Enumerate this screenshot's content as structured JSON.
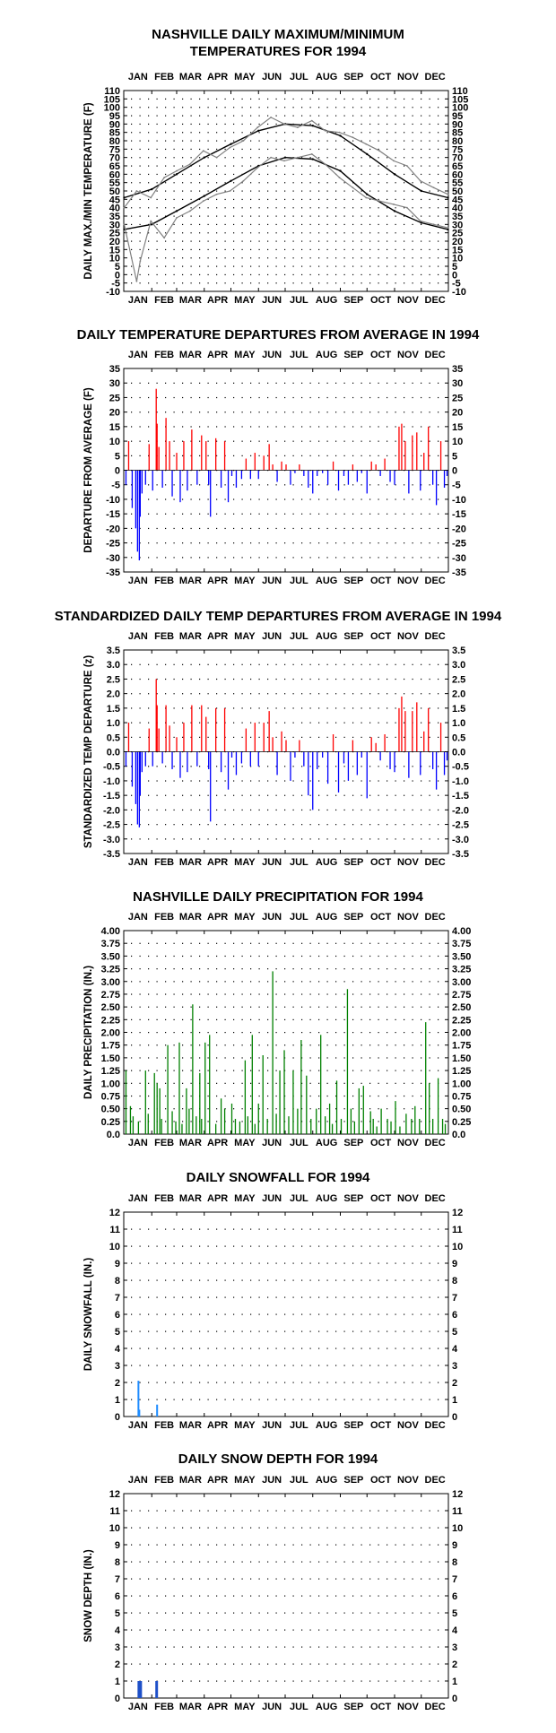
{
  "chart_data": [
    {
      "id": "temp",
      "type": "line",
      "title_lines": [
        "NASHVILLE DAILY MAXIMUM/MINIMUM",
        "TEMPERATURES FOR 1994"
      ],
      "ylabel": "DAILY MAX./MIN TEMPERATURE (F)",
      "ylim": [
        -10,
        110
      ],
      "yticks": [
        "-10",
        "-5",
        "0",
        "5",
        "10",
        "15",
        "20",
        "25",
        "30",
        "35",
        "40",
        "45",
        "50",
        "55",
        "60",
        "65",
        "70",
        "75",
        "80",
        "85",
        "90",
        "95",
        "100",
        "105",
        "110"
      ],
      "months": [
        "JAN",
        "FEB",
        "MAR",
        "APR",
        "MAY",
        "JUN",
        "JUL",
        "AUG",
        "SEP",
        "OCT",
        "NOV",
        "DEC"
      ],
      "grid": true,
      "colors": {
        "observed": "#808080",
        "normal": "#000000"
      },
      "series": [
        {
          "role": "normal_max",
          "x": [
            1,
            32,
            60,
            91,
            121,
            152,
            182,
            213,
            244,
            274,
            305,
            335,
            365
          ],
          "values": [
            46,
            51,
            60,
            70,
            78,
            86,
            90,
            89,
            83,
            72,
            60,
            50,
            46
          ]
        },
        {
          "role": "normal_min",
          "x": [
            1,
            32,
            60,
            91,
            121,
            152,
            182,
            213,
            244,
            274,
            305,
            335,
            365
          ],
          "values": [
            27,
            30,
            38,
            47,
            56,
            65,
            70,
            69,
            62,
            48,
            38,
            31,
            27
          ]
        },
        {
          "role": "observed_max",
          "x": [
            1,
            15,
            31,
            46,
            60,
            75,
            90,
            105,
            120,
            135,
            151,
            166,
            181,
            196,
            212,
            227,
            243,
            258,
            273,
            288,
            304,
            319,
            334,
            349,
            365
          ],
          "values": [
            40,
            50,
            46,
            58,
            62,
            66,
            74,
            70,
            76,
            80,
            88,
            94,
            90,
            88,
            92,
            86,
            85,
            82,
            78,
            74,
            68,
            65,
            56,
            52,
            48
          ]
        },
        {
          "role": "observed_min",
          "x": [
            1,
            15,
            19,
            31,
            46,
            60,
            75,
            90,
            105,
            120,
            135,
            151,
            166,
            181,
            196,
            212,
            227,
            243,
            258,
            273,
            288,
            304,
            319,
            334,
            349,
            365
          ],
          "values": [
            30,
            -4,
            8,
            32,
            22,
            34,
            38,
            44,
            48,
            50,
            56,
            64,
            70,
            68,
            70,
            72,
            66,
            58,
            52,
            46,
            44,
            42,
            40,
            32,
            30,
            28
          ]
        }
      ]
    },
    {
      "id": "dep",
      "type": "bar",
      "title_lines": [
        "DAILY TEMPERATURE DEPARTURES FROM AVERAGE IN 1994"
      ],
      "ylabel": "DEPARTURE FROM AVERAGE (F)",
      "ylim": [
        -35,
        35
      ],
      "yticks": [
        "-35",
        "-30",
        "-25",
        "-20",
        "-15",
        "-10",
        "-5",
        "0",
        "5",
        "10",
        "15",
        "20",
        "25",
        "30",
        "35"
      ],
      "months": [
        "JAN",
        "FEB",
        "MAR",
        "APR",
        "MAY",
        "JUN",
        "JUL",
        "AUG",
        "SEP",
        "OCT",
        "NOV",
        "DEC"
      ],
      "grid": true,
      "colors": {
        "positive": "#ff0000",
        "negative": "#0000ff"
      },
      "x": [
        3,
        6,
        10,
        14,
        16,
        18,
        19,
        21,
        25,
        29,
        33,
        37,
        38,
        40,
        44,
        48,
        52,
        55,
        60,
        64,
        68,
        72,
        77,
        83,
        88,
        93,
        96,
        98,
        104,
        110,
        114,
        118,
        122,
        127,
        133,
        138,
        143,
        148,
        152,
        158,
        164,
        168,
        173,
        178,
        183,
        188,
        193,
        198,
        203,
        208,
        213,
        218,
        224,
        230,
        236,
        242,
        248,
        253,
        258,
        263,
        268,
        274,
        279,
        284,
        289,
        294,
        300,
        305,
        310,
        313,
        317,
        321,
        325,
        330,
        334,
        338,
        343,
        348,
        352,
        357,
        361,
        364
      ],
      "values": [
        -5,
        10,
        -13,
        -20,
        -28,
        -31,
        -16,
        -8,
        -5,
        9,
        -7,
        28,
        16,
        8,
        -6,
        18,
        10,
        -9,
        6,
        -11,
        10,
        -7,
        14,
        -5,
        12,
        10,
        -5,
        -16,
        11,
        -6,
        10,
        -11,
        -2,
        -6,
        -3,
        4,
        -3,
        6,
        -3,
        5,
        9,
        2,
        -4,
        3,
        2,
        -5,
        -1,
        2,
        -2,
        -6,
        -8,
        -2,
        -1,
        -5,
        3,
        -7,
        -2,
        -5,
        2,
        -4,
        -1,
        -8,
        3,
        2,
        -2,
        4,
        -4,
        -5,
        15,
        16,
        10,
        -8,
        12,
        13,
        -7,
        6,
        15,
        -5,
        -12,
        10,
        -6,
        -2
      ]
    },
    {
      "id": "std",
      "type": "bar",
      "title_lines": [
        "STANDARDIZED DAILY TEMP DEPARTURES FROM AVERAGE IN 1994"
      ],
      "ylabel": "STANDARDIZED TEMP DEPARTURE (z)",
      "ylim": [
        -3.5,
        3.5
      ],
      "yticks": [
        "-3.5",
        "-3.0",
        "-2.5",
        "-2.0",
        "-1.5",
        "-1.0",
        "-0.5",
        "0.0",
        "0.5",
        "1.0",
        "1.5",
        "2.0",
        "2.5",
        "3.0",
        "3.5"
      ],
      "months": [
        "JAN",
        "FEB",
        "MAR",
        "APR",
        "MAY",
        "JUN",
        "JUL",
        "AUG",
        "SEP",
        "OCT",
        "NOV",
        "DEC"
      ],
      "grid": true,
      "colors": {
        "positive": "#ff0000",
        "negative": "#0000ff"
      },
      "x": [
        3,
        6,
        10,
        14,
        16,
        18,
        19,
        21,
        25,
        29,
        33,
        37,
        38,
        40,
        44,
        48,
        52,
        55,
        60,
        64,
        68,
        72,
        77,
        83,
        88,
        93,
        96,
        98,
        104,
        110,
        114,
        118,
        122,
        127,
        133,
        138,
        143,
        148,
        152,
        158,
        164,
        168,
        173,
        178,
        183,
        188,
        193,
        198,
        203,
        208,
        213,
        218,
        224,
        230,
        236,
        242,
        248,
        253,
        258,
        263,
        268,
        274,
        279,
        284,
        289,
        294,
        300,
        305,
        310,
        313,
        317,
        321,
        325,
        330,
        334,
        338,
        343,
        348,
        352,
        357,
        361,
        364
      ],
      "values": [
        -0.5,
        1.0,
        -1.2,
        -1.8,
        -2.5,
        -2.6,
        -1.5,
        -0.7,
        -0.5,
        0.8,
        -0.5,
        2.5,
        1.6,
        0.8,
        -0.4,
        1.6,
        0.9,
        -0.6,
        0.5,
        -0.9,
        1.0,
        -0.7,
        1.6,
        -0.5,
        1.6,
        1.2,
        -0.6,
        -2.4,
        1.5,
        -0.7,
        1.5,
        -1.3,
        -0.2,
        -0.8,
        -0.4,
        0.8,
        -0.5,
        1.0,
        -0.5,
        1.0,
        1.4,
        0.5,
        -0.8,
        0.7,
        0.4,
        -1.0,
        -0.2,
        0.4,
        -0.5,
        -1.5,
        -2.0,
        -0.6,
        -0.2,
        -1.1,
        0.6,
        -1.4,
        -0.4,
        -1.0,
        0.4,
        -0.8,
        -0.2,
        -1.6,
        0.5,
        0.3,
        -0.3,
        0.6,
        -0.6,
        -0.7,
        1.5,
        1.9,
        1.4,
        -0.9,
        1.4,
        1.7,
        -0.8,
        0.7,
        1.5,
        -0.6,
        -1.3,
        1.0,
        -0.8,
        -0.3
      ]
    },
    {
      "id": "precip",
      "type": "bar",
      "title_lines": [
        "NASHVILLE DAILY PRECIPITATION FOR 1994"
      ],
      "ylabel": "DAILY PRECIPITATION (IN.)",
      "ylim": [
        0,
        4
      ],
      "yticks": [
        "0.0",
        "0.25",
        "0.50",
        "0.75",
        "1.00",
        "1.25",
        "1.50",
        "1.75",
        "2.00",
        "2.25",
        "2.50",
        "2.75",
        "3.00",
        "3.25",
        "3.50",
        "3.75",
        "4.00"
      ],
      "months": [
        "JAN",
        "FEB",
        "MAR",
        "APR",
        "MAY",
        "JUN",
        "JUL",
        "AUG",
        "SEP",
        "OCT",
        "NOV",
        "DEC"
      ],
      "grid": true,
      "colors": {
        "bar": "#008000"
      },
      "x": [
        3,
        8,
        11,
        17,
        25,
        28,
        35,
        38,
        41,
        43,
        50,
        55,
        59,
        63,
        66,
        71,
        74,
        78,
        82,
        86,
        88,
        92,
        97,
        104,
        110,
        114,
        122,
        126,
        131,
        137,
        140,
        145,
        148,
        152,
        157,
        162,
        168,
        172,
        176,
        181,
        186,
        191,
        196,
        200,
        206,
        211,
        217,
        222,
        227,
        232,
        235,
        240,
        245,
        252,
        256,
        260,
        265,
        270,
        278,
        281,
        285,
        290,
        297,
        301,
        306,
        311,
        318,
        324,
        328,
        333,
        340,
        344,
        348,
        354,
        359,
        362
      ],
      "values": [
        1.25,
        0.55,
        0.35,
        0.25,
        1.25,
        0.4,
        1.2,
        1.0,
        0.9,
        0.3,
        1.75,
        0.45,
        0.25,
        1.8,
        0.2,
        0.9,
        0.5,
        2.55,
        0.35,
        1.2,
        0.3,
        1.8,
        1.95,
        0.2,
        0.7,
        0.5,
        0.6,
        0.3,
        0.25,
        1.45,
        0.35,
        1.95,
        0.2,
        0.6,
        1.55,
        0.3,
        3.2,
        0.4,
        1.25,
        1.65,
        0.35,
        1.25,
        0.5,
        1.85,
        1.15,
        0.3,
        0.5,
        1.95,
        0.35,
        0.6,
        0.2,
        1.05,
        0.3,
        2.85,
        0.5,
        0.25,
        0.9,
        0.95,
        0.45,
        0.3,
        0.15,
        0.5,
        0.3,
        0.25,
        0.65,
        0.15,
        0.4,
        0.3,
        0.55,
        0.3,
        2.2,
        1.0,
        0.3,
        1.1,
        0.3,
        0.2
      ]
    },
    {
      "id": "snow",
      "type": "bar",
      "title_lines": [
        "DAILY SNOWFALL FOR 1994"
      ],
      "ylabel": "DAILY SNOWFALL (IN.)",
      "ylim": [
        0,
        12
      ],
      "yticks": [
        "0",
        "1",
        "2",
        "3",
        "4",
        "5",
        "6",
        "7",
        "8",
        "9",
        "10",
        "11",
        "12"
      ],
      "months": [
        "JAN",
        "FEB",
        "MAR",
        "APR",
        "MAY",
        "JUN",
        "JUL",
        "AUG",
        "SEP",
        "OCT",
        "NOV",
        "DEC"
      ],
      "grid": true,
      "colors": {
        "bar": "#1e8cff"
      },
      "x": [
        17,
        18,
        38
      ],
      "values": [
        2.1,
        0.4,
        0.7
      ]
    },
    {
      "id": "depth",
      "type": "bar",
      "title_lines": [
        "DAILY SNOW DEPTH FOR 1994"
      ],
      "ylabel": "SNOW DEPTH (IN.)",
      "ylim": [
        0,
        12
      ],
      "yticks": [
        "0",
        "1",
        "2",
        "3",
        "4",
        "5",
        "6",
        "7",
        "8",
        "9",
        "10",
        "11",
        "12"
      ],
      "months": [
        "JAN",
        "FEB",
        "MAR",
        "APR",
        "MAY",
        "JUN",
        "JUL",
        "AUG",
        "SEP",
        "OCT",
        "NOV",
        "DEC"
      ],
      "grid": true,
      "colors": {
        "bar": "#1e50c8"
      },
      "x": [
        17,
        18,
        19,
        20,
        37,
        38
      ],
      "values": [
        1,
        1,
        1,
        1,
        1,
        1
      ]
    }
  ]
}
